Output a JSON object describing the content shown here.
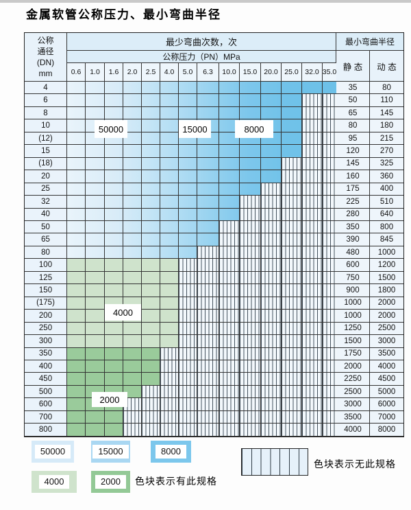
{
  "title": "金属软管公称压力、最小弯曲半径",
  "header": {
    "dn_label_lines": [
      "公称",
      "通径",
      "(DN)",
      "mm"
    ],
    "bend_cycles_label": "最少弯曲次数，次",
    "pressure_label": "公称压力（PN）MPa",
    "bend_radius_label": "最小弯曲半径",
    "static_label": "静 态",
    "dynamic_label": "动 态"
  },
  "pressure_ticks": [
    "0.6",
    "1.0",
    "1.6",
    "2.0",
    "2.5",
    "4.0",
    "5.0",
    "6.3",
    "10.0",
    "15.0",
    "20.0",
    "25.0",
    "32.0",
    "35.0"
  ],
  "rows": [
    {
      "dn": "4",
      "spec_through": "35.0",
      "zone": "blue",
      "static": "35",
      "dynamic": "80"
    },
    {
      "dn": "6",
      "spec_through": "25.0",
      "zone": "blue",
      "static": "50",
      "dynamic": "110"
    },
    {
      "dn": "8",
      "spec_through": "25.0",
      "zone": "blue",
      "static": "65",
      "dynamic": "145"
    },
    {
      "dn": "10",
      "spec_through": "25.0",
      "zone": "blue",
      "static": "80",
      "dynamic": "180"
    },
    {
      "dn": "(12)",
      "spec_through": "25.0",
      "zone": "blue",
      "static": "95",
      "dynamic": "215"
    },
    {
      "dn": "15",
      "spec_through": "25.0",
      "zone": "blue",
      "static": "120",
      "dynamic": "270"
    },
    {
      "dn": "(18)",
      "spec_through": "20.0",
      "zone": "blue",
      "static": "145",
      "dynamic": "325"
    },
    {
      "dn": "20",
      "spec_through": "20.0",
      "zone": "blue",
      "static": "160",
      "dynamic": "360"
    },
    {
      "dn": "25",
      "spec_through": "15.0",
      "zone": "blue",
      "static": "175",
      "dynamic": "400"
    },
    {
      "dn": "32",
      "spec_through": "10.0",
      "zone": "blue",
      "static": "225",
      "dynamic": "510"
    },
    {
      "dn": "40",
      "spec_through": "10.0",
      "zone": "blue",
      "static": "280",
      "dynamic": "640"
    },
    {
      "dn": "50",
      "spec_through": "6.3",
      "zone": "blue",
      "static": "350",
      "dynamic": "800"
    },
    {
      "dn": "65",
      "spec_through": "6.3",
      "zone": "blue",
      "static": "390",
      "dynamic": "845"
    },
    {
      "dn": "80",
      "spec_through": "5.0",
      "zone": "blue",
      "static": "480",
      "dynamic": "1000"
    },
    {
      "dn": "100",
      "spec_through": "4.0",
      "zone": "g4",
      "static": "600",
      "dynamic": "1200"
    },
    {
      "dn": "125",
      "spec_through": "4.0",
      "zone": "g4",
      "static": "750",
      "dynamic": "1500"
    },
    {
      "dn": "150",
      "spec_through": "4.0",
      "zone": "g4",
      "static": "900",
      "dynamic": "1800"
    },
    {
      "dn": "(175)",
      "spec_through": "4.0",
      "zone": "g4",
      "static": "1000",
      "dynamic": "2000"
    },
    {
      "dn": "200",
      "spec_through": "4.0",
      "zone": "g4",
      "static": "1000",
      "dynamic": "2000"
    },
    {
      "dn": "250",
      "spec_through": "4.0",
      "zone": "g4",
      "static": "1250",
      "dynamic": "2500"
    },
    {
      "dn": "300",
      "spec_through": "4.0",
      "zone": "g4",
      "static": "1500",
      "dynamic": "3000"
    },
    {
      "dn": "350",
      "spec_through": "2.5",
      "zone": "g2",
      "static": "1750",
      "dynamic": "3500"
    },
    {
      "dn": "400",
      "spec_through": "2.5",
      "zone": "g2",
      "static": "2000",
      "dynamic": "4000"
    },
    {
      "dn": "450",
      "spec_through": "2.5",
      "zone": "g2",
      "static": "2250",
      "dynamic": "4500"
    },
    {
      "dn": "500",
      "spec_through": "2.0",
      "zone": "g2",
      "static": "2500",
      "dynamic": "5000"
    },
    {
      "dn": "600",
      "spec_through": "1.6",
      "zone": "g2",
      "static": "3000",
      "dynamic": "6000"
    },
    {
      "dn": "700",
      "spec_through": "1.6",
      "zone": "g2",
      "static": "3500",
      "dynamic": "7000"
    },
    {
      "dn": "800",
      "spec_through": "1.6",
      "zone": "g2",
      "static": "4000",
      "dynamic": "8000"
    }
  ],
  "zone_labels": [
    {
      "text": "50000"
    },
    {
      "text": "15000"
    },
    {
      "text": "8000"
    },
    {
      "text": "4000"
    },
    {
      "text": "2000"
    }
  ],
  "legend": {
    "items": [
      {
        "value": "50000",
        "color": "#d6eaf8"
      },
      {
        "value": "15000",
        "color": "#a9d7f2"
      },
      {
        "value": "8000",
        "color": "#7cc7ec"
      },
      {
        "value": "4000",
        "color": "#cfe3cc"
      },
      {
        "value": "2000",
        "color": "#93c996"
      }
    ],
    "spec_text": "色块表示有此规格",
    "no_spec_text": "色块表示无此规格"
  },
  "colors": {
    "blue_50000": "#d6eaf8",
    "blue_15000": "#a9d7f2",
    "blue_8000": "#7cc7ec",
    "green_4000": "#cfe3cc",
    "green_2000": "#93c996",
    "grid_line": "#333333",
    "hatch_line": "#42505c"
  }
}
